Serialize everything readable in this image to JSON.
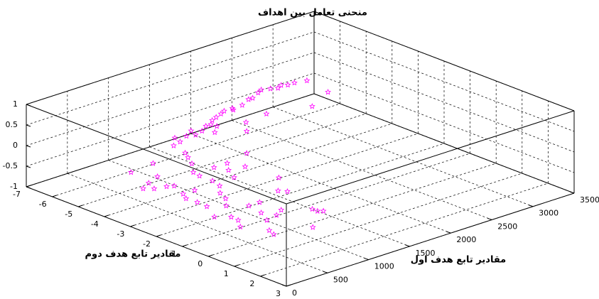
{
  "chart_data": {
    "type": "scatter3d",
    "title": "منحنی تعامل بین اهداف",
    "xlabel": "مقادیر تابع هدف اول",
    "ylabel": "مقادیر تابع هدف دوم",
    "color": "#ff00ff",
    "marker": "pentagram",
    "grid": true,
    "xlim": [
      0,
      3500
    ],
    "xticks": [
      0,
      500,
      1000,
      1500,
      2000,
      2500,
      3000,
      3500
    ],
    "ylim": [
      -7,
      3
    ],
    "yticks": [
      -7,
      -6,
      -5,
      -4,
      -3,
      -2,
      -1,
      0,
      1,
      2,
      3
    ],
    "zlim": [
      -1,
      1
    ],
    "zticks": [
      -1,
      -0.5,
      0,
      0.5,
      1
    ],
    "x": [
      2970,
      2850,
      2770,
      2720,
      2650,
      2590,
      2510,
      2440,
      2310,
      2260,
      2120,
      1980,
      2000,
      1900,
      1830,
      1740,
      1660,
      1580,
      1520,
      1590,
      1470,
      1410,
      1340,
      1300,
      1220,
      1080,
      1110,
      970,
      920,
      860,
      780,
      640,
      620,
      860,
      1020,
      910,
      820,
      1850,
      1700,
      1320,
      1080,
      2130,
      2560,
      2910,
      230,
      530,
      330,
      160,
      100,
      220,
      280,
      200,
      140,
      340,
      150,
      140,
      10,
      460,
      400,
      280,
      120,
      110,
      10,
      430,
      560,
      390,
      300,
      140,
      100,
      450,
      570,
      1110,
      930,
      790,
      790,
      830,
      480,
      880,
      620,
      580,
      30
    ],
    "y": [
      -5.6,
      -5.7,
      -5.7,
      -5.8,
      -5.7,
      -5.8,
      -5.9,
      -5.8,
      -5.6,
      -5.6,
      -5.4,
      -5.3,
      -5.4,
      -5.4,
      -5.3,
      -5.2,
      -5.1,
      -4.9,
      -4.9,
      -4.7,
      -4.4,
      -4.7,
      -4.9,
      -4.6,
      -4.7,
      -4.5,
      -4.8,
      -4.4,
      -3.8,
      -3.5,
      -3.1,
      -2.6,
      -2.3,
      -2.5,
      -2.5,
      -2.1,
      -1.6,
      -4.4,
      -3.9,
      -2.7,
      -2.0,
      -4.5,
      -4.1,
      -4.6,
      -3.7,
      -3.8,
      -3.0,
      -2.8,
      -2.4,
      -2.3,
      -2.2,
      -1.6,
      -1.3,
      -1.6,
      -0.9,
      -0.5,
      0.2,
      -1.0,
      -0.6,
      -0.2,
      0.5,
      0.8,
      1.2,
      0.2,
      0.2,
      0.8,
      1.3,
      1.9,
      2.2,
      1.2,
      1.0,
      -0.8,
      0.1,
      1.5,
      1.7,
      1.8,
      2.5,
      -0.1,
      -1.8,
      -1.4,
      -2.6
    ],
    "z": [
      0,
      0,
      0,
      0,
      0,
      0,
      0,
      0,
      0,
      0,
      0,
      0,
      0,
      0,
      0,
      0,
      0,
      0,
      0,
      0,
      0,
      0,
      0,
      0,
      0,
      0,
      0,
      0,
      0,
      0,
      0,
      0,
      0,
      0,
      0,
      0,
      0,
      0,
      0,
      0,
      0,
      0,
      0,
      0,
      0,
      0,
      0,
      0,
      0,
      0,
      0,
      0,
      0,
      0,
      0,
      0,
      0,
      0,
      0,
      0,
      0,
      0,
      0,
      0,
      0,
      0,
      0,
      0,
      0,
      0,
      0,
      0,
      0,
      0,
      0,
      0,
      0,
      0,
      0,
      0,
      0
    ]
  }
}
